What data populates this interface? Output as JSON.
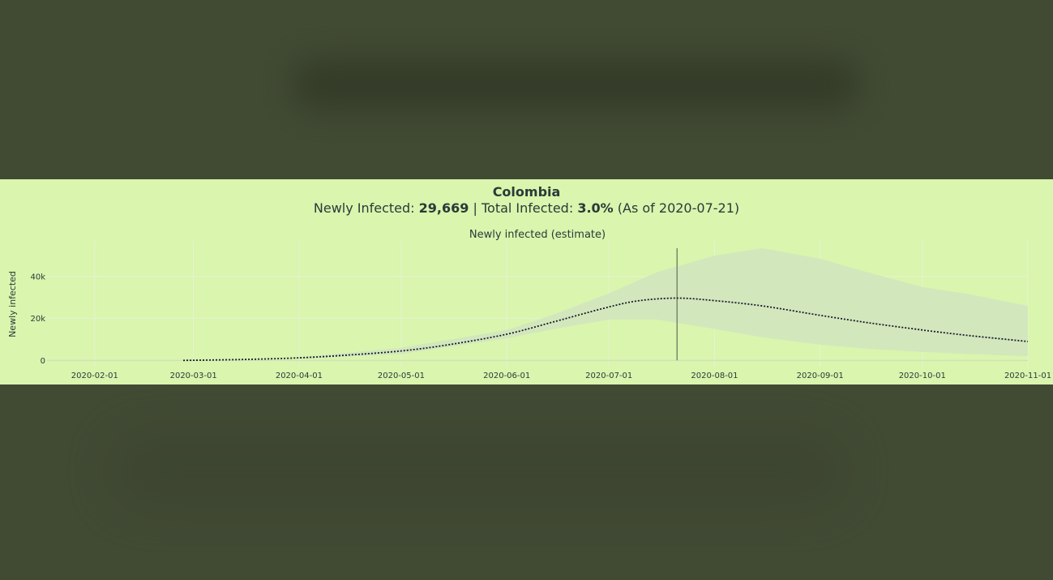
{
  "header": {
    "country": "Colombia",
    "newly_label": "Newly Infected: ",
    "newly_value": "29,669",
    "sep": " | Total Infected: ",
    "total_value": "3.0%",
    "asof": " (As of 2020-07-21)"
  },
  "chart_data": {
    "type": "line",
    "title": "Newly infected (estimate)",
    "ylabel": "Newly infected",
    "xlabel": "",
    "x_ticks": [
      "2020-02-01",
      "2020-03-01",
      "2020-04-01",
      "2020-05-01",
      "2020-06-01",
      "2020-07-01",
      "2020-08-01",
      "2020-09-01",
      "2020-10-01",
      "2020-11-01"
    ],
    "y_ticks": [
      0,
      20000,
      40000
    ],
    "y_tick_labels": [
      "0",
      "20k",
      "40k"
    ],
    "xlim": [
      "2020-01-18",
      "2020-11-01"
    ],
    "ylim": [
      -3000,
      57000
    ],
    "grid": true,
    "current_date": "2020-07-21",
    "estimate": {
      "x": [
        "2020-02-27",
        "2020-03-15",
        "2020-04-01",
        "2020-04-15",
        "2020-05-01",
        "2020-05-15",
        "2020-06-01",
        "2020-06-15",
        "2020-07-01",
        "2020-07-10",
        "2020-07-21",
        "2020-08-01",
        "2020-08-15",
        "2020-09-01",
        "2020-09-15",
        "2020-10-01",
        "2020-10-15",
        "2020-11-01"
      ],
      "y": [
        0,
        400,
        1200,
        2500,
        4500,
        7500,
        12500,
        18500,
        25500,
        28500,
        29700,
        28500,
        26000,
        21500,
        18000,
        14500,
        11800,
        9000
      ]
    },
    "band_upper": {
      "x": [
        "2020-04-01",
        "2020-05-01",
        "2020-06-01",
        "2020-06-15",
        "2020-07-01",
        "2020-07-15",
        "2020-08-01",
        "2020-08-15",
        "2020-09-01",
        "2020-09-15",
        "2020-10-01",
        "2020-10-15",
        "2020-11-01"
      ],
      "y": [
        1500,
        6000,
        14500,
        22000,
        32000,
        42000,
        50000,
        53500,
        48500,
        42000,
        35000,
        31500,
        26000
      ]
    },
    "band_lower": {
      "x": [
        "2020-04-01",
        "2020-05-01",
        "2020-06-01",
        "2020-06-15",
        "2020-07-01",
        "2020-07-15",
        "2020-08-01",
        "2020-08-15",
        "2020-09-01",
        "2020-09-15",
        "2020-10-01",
        "2020-10-15",
        "2020-11-01"
      ],
      "y": [
        800,
        3000,
        10500,
        15000,
        19500,
        19500,
        15000,
        11000,
        7500,
        5500,
        4000,
        3000,
        2000
      ]
    },
    "colors": {
      "panel_bg": "#d9f5ae",
      "band": "#d3e7bd",
      "line": "#1a1a2e",
      "grid": "#e6f3d0",
      "marker": "#7a8a6a",
      "text": "#2a3a38"
    }
  }
}
